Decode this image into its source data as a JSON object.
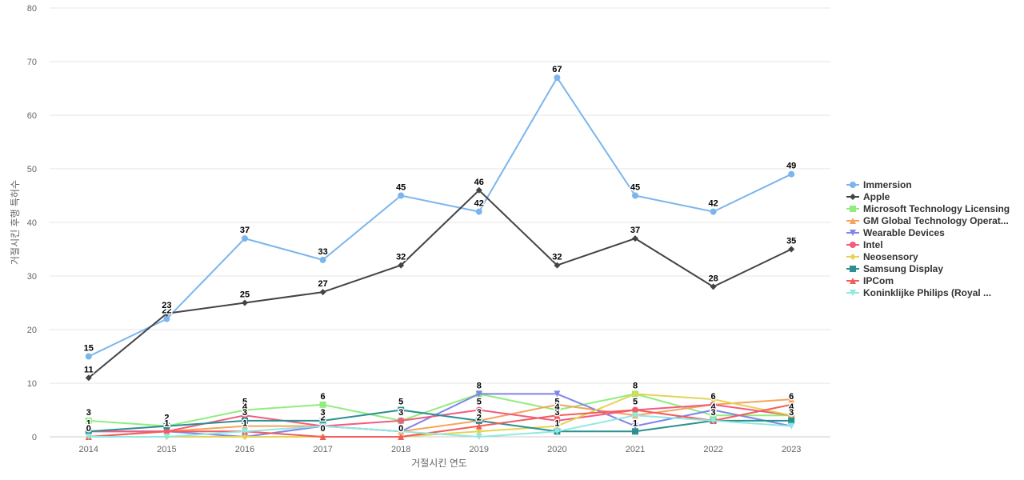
{
  "chart_data": {
    "type": "line",
    "title": "",
    "xlabel": "거절시킨 연도",
    "ylabel": "거절시킨 후행 특허수",
    "ylim": [
      0,
      80
    ],
    "yticks": [
      0,
      10,
      20,
      30,
      40,
      50,
      60,
      70,
      80
    ],
    "x": [
      "2014",
      "2015",
      "2016",
      "2017",
      "2018",
      "2019",
      "2020",
      "2021",
      "2022",
      "2023"
    ],
    "grid": true,
    "legend": "right",
    "series": [
      {
        "name": "Immersion",
        "color": "#7cb5ec",
        "marker": "circle",
        "labeled": true,
        "values": [
          15,
          22,
          37,
          33,
          45,
          42,
          67,
          45,
          42,
          49
        ]
      },
      {
        "name": "Apple",
        "color": "#434348",
        "marker": "diamond",
        "labeled": true,
        "values": [
          11,
          23,
          25,
          27,
          32,
          46,
          32,
          37,
          28,
          35
        ]
      },
      {
        "name": "Microsoft Technology Licensing",
        "color": "#90ed7d",
        "marker": "square",
        "labeled": true,
        "values": [
          3,
          2,
          5,
          6,
          3,
          8,
          5,
          8,
          4,
          4
        ]
      },
      {
        "name": "GM Global Technology Operat...",
        "color": "#f7a35c",
        "marker": "triangle",
        "labeled": false,
        "values": [
          0,
          1,
          2,
          2,
          1,
          3,
          6,
          4,
          6,
          7
        ]
      },
      {
        "name": "Wearable Devices",
        "color": "#8085e9",
        "marker": "triangle-down",
        "labeled": false,
        "values": [
          1,
          1,
          0,
          2,
          1,
          8,
          8,
          2,
          5,
          2
        ]
      },
      {
        "name": "Intel",
        "color": "#f15c80",
        "marker": "circle",
        "labeled": true,
        "values": [
          1,
          1,
          4,
          2,
          3,
          5,
          3,
          5,
          6,
          4
        ]
      },
      {
        "name": "Neosensory",
        "color": "#e4d354",
        "marker": "diamond",
        "labeled": false,
        "values": [
          0,
          0,
          0,
          0,
          0,
          1,
          2,
          8,
          7,
          4
        ]
      },
      {
        "name": "Samsung Display",
        "color": "#2b908f",
        "marker": "square",
        "labeled": true,
        "values": [
          1,
          2,
          3,
          3,
          5,
          3,
          1,
          1,
          3,
          3
        ]
      },
      {
        "name": "IPCom",
        "color": "#f45b5b",
        "marker": "triangle",
        "labeled": true,
        "values": [
          0,
          1,
          1,
          0,
          0,
          2,
          4,
          5,
          3,
          6
        ]
      },
      {
        "name": "Koninklijke Philips (Royal ...",
        "color": "#91e8e1",
        "marker": "triangle-down",
        "labeled": false,
        "values": [
          0,
          0,
          1,
          2,
          1,
          0,
          1,
          4,
          3,
          2
        ]
      }
    ]
  }
}
